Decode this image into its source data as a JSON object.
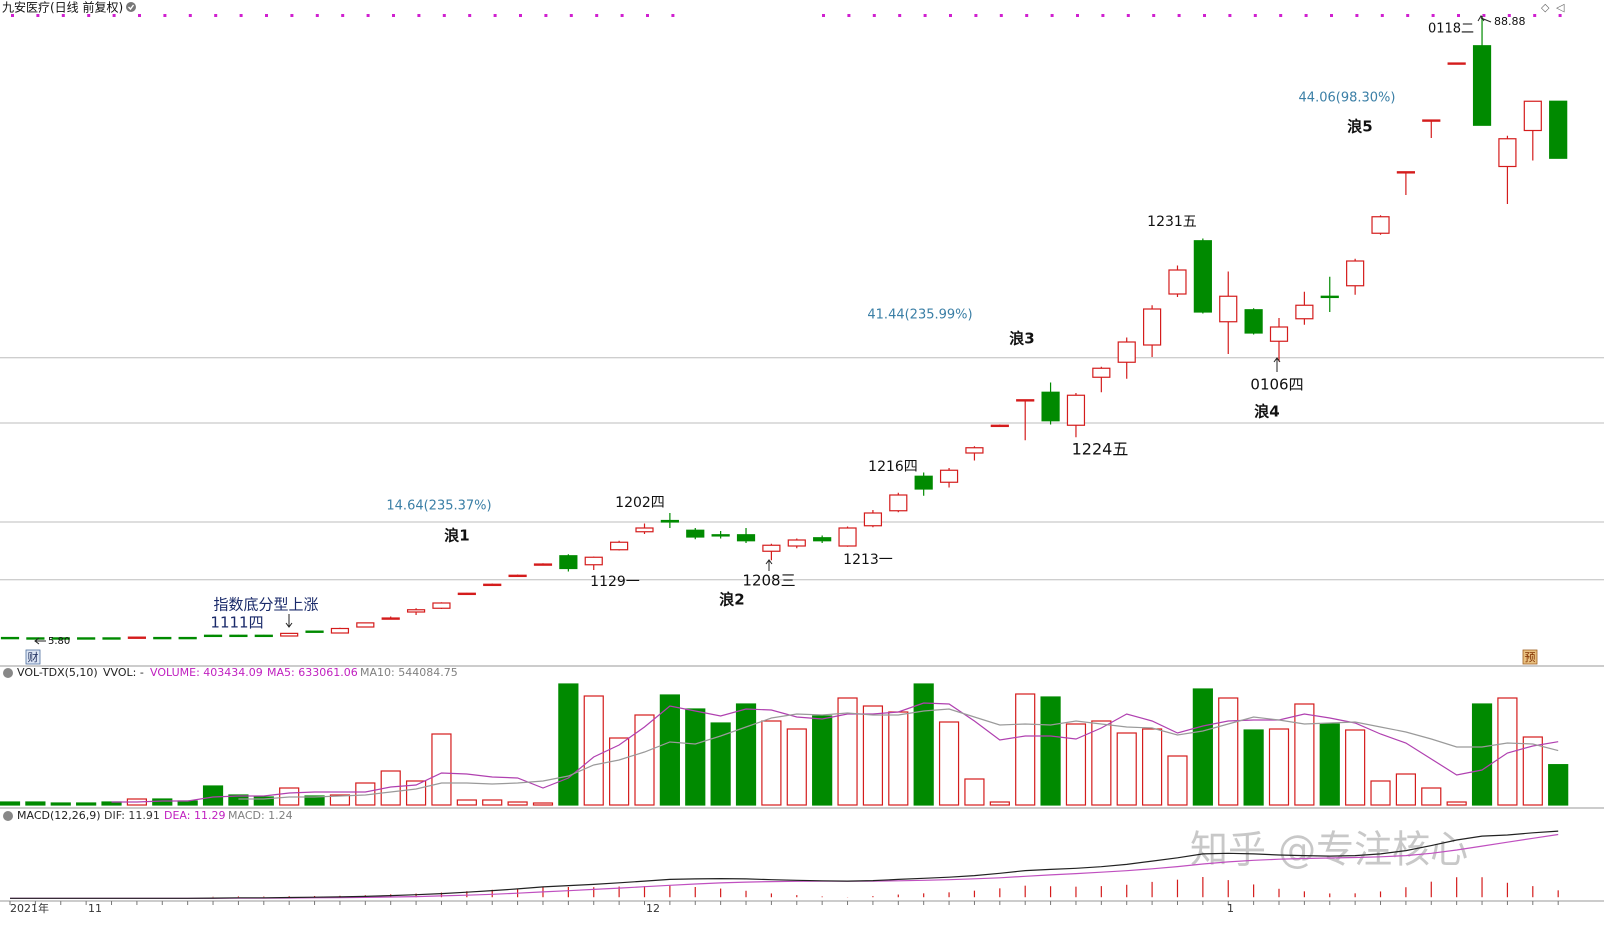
{
  "chart_data": [
    {
      "type": "candlestick",
      "title": "九安医疗(日线 前复权)",
      "up_color": "#d41c1c",
      "down_color": "#008a00",
      "ylim": [
        3,
        91
      ],
      "open": [
        6.0,
        5.95,
        5.95,
        5.95,
        5.95,
        5.95,
        6.0,
        6.0,
        6.3,
        6.3,
        6.3,
        6.2,
        6.85,
        6.6,
        7.4,
        8.6,
        9.4,
        9.9,
        11.9,
        13.1,
        14.3,
        15.8,
        16.9,
        15.7,
        17.7,
        20.1,
        21.6,
        20.3,
        19.7,
        19.7,
        17.5,
        18.2,
        19.3,
        18.2,
        20.9,
        22.9,
        27.5,
        26.7,
        30.6,
        34.3,
        37.7,
        38.7,
        34.3,
        40.7,
        42.7,
        45.0,
        51.8,
        58.9,
        48.1,
        49.7,
        45.5,
        48.5,
        51.5,
        52.9,
        59.9,
        68.1,
        75.0,
        82.6,
        84.9,
        68.8,
        73.6,
        77.5
      ],
      "high": [
        6.0,
        6.0,
        6.0,
        6.0,
        6.0,
        6.1,
        6.05,
        6.05,
        6.35,
        6.35,
        6.35,
        6.6,
        6.9,
        7.3,
        8.0,
        8.8,
        9.9,
        10.7,
        11.95,
        13.2,
        14.4,
        15.9,
        17.1,
        16.8,
        18.9,
        21.2,
        22.6,
        20.6,
        20.2,
        20.6,
        18.5,
        19.2,
        19.6,
        20.8,
        23.0,
        25.3,
        28.0,
        28.6,
        31.5,
        34.4,
        37.7,
        40.0,
        38.6,
        42.1,
        46.0,
        50.3,
        55.6,
        59.2,
        54.8,
        49.9,
        48.6,
        52.1,
        54.1,
        56.5,
        62.3,
        68.1,
        75.0,
        82.6,
        88.88,
        72.9,
        77.5,
        77.5
      ],
      "low": [
        5.9,
        5.8,
        5.9,
        5.9,
        5.9,
        5.9,
        5.95,
        5.95,
        6.2,
        6.25,
        6.25,
        6.15,
        6.75,
        6.55,
        7.35,
        8.4,
        9.0,
        9.8,
        11.85,
        13.0,
        14.2,
        15.7,
        14.8,
        15.0,
        17.6,
        19.8,
        20.6,
        19.1,
        19.2,
        18.6,
        16.3,
        17.9,
        18.6,
        18.1,
        20.7,
        22.7,
        24.9,
        26.0,
        29.6,
        34.2,
        32.3,
        34.4,
        32.7,
        38.7,
        40.5,
        43.4,
        51.4,
        49.2,
        43.8,
        46.4,
        42.8,
        47.7,
        49.4,
        51.7,
        59.7,
        65.0,
        72.6,
        82.4,
        74.3,
        63.8,
        69.6,
        69.9
      ],
      "close": [
        5.98,
        5.93,
        5.93,
        5.93,
        5.93,
        6.05,
        5.98,
        5.98,
        6.25,
        6.28,
        6.28,
        6.55,
        6.8,
        7.2,
        7.95,
        8.6,
        9.7,
        10.6,
        11.9,
        13.1,
        14.3,
        15.8,
        15.2,
        16.7,
        18.7,
        20.6,
        21.4,
        19.4,
        19.6,
        18.9,
        18.3,
        19.0,
        18.9,
        20.6,
        22.6,
        25.0,
        25.8,
        28.3,
        31.3,
        34.3,
        37.7,
        34.9,
        38.3,
        41.9,
        45.4,
        49.8,
        55.0,
        49.4,
        51.5,
        46.6,
        47.4,
        50.3,
        51.4,
        56.2,
        62.1,
        68.1,
        75.0,
        82.6,
        74.3,
        72.5,
        77.5,
        69.9
      ],
      "levels": [
        43.3,
        34.6,
        21.4,
        13.7
      ],
      "level_color": "#bdbdbd",
      "annotations": [
        {
          "text": "14.64(235.37%)",
          "color": "#3b7fa6"
        },
        {
          "text": "41.44(235.99%)",
          "color": "#3b7fa6"
        },
        {
          "text": "44.06(98.30%)",
          "color": "#3b7fa6"
        },
        {
          "text": "浪1",
          "color": "#111111"
        },
        {
          "text": "浪2",
          "color": "#111111"
        },
        {
          "text": "浪3",
          "color": "#111111"
        },
        {
          "text": "浪4",
          "color": "#111111"
        },
        {
          "text": "浪5",
          "color": "#111111"
        },
        {
          "text": "1202四",
          "color": "#111111"
        },
        {
          "text": "1129一",
          "color": "#111111"
        },
        {
          "text": "1208三",
          "color": "#111111"
        },
        {
          "text": "1213一",
          "color": "#111111"
        },
        {
          "text": "1216四",
          "color": "#111111"
        },
        {
          "text": "1224五",
          "color": "#111111"
        },
        {
          "text": "1231五",
          "color": "#111111"
        },
        {
          "text": "0106四",
          "color": "#111111"
        },
        {
          "text": "0118二",
          "color": "#111111"
        },
        {
          "text": "88.88",
          "color": "#111111"
        },
        {
          "text": "5.80",
          "color": "#111111"
        },
        {
          "text": "指数底分型上涨",
          "color": "#1a2a6a"
        },
        {
          "text": "1111四",
          "color": "#1a2a6a"
        }
      ],
      "badges": [
        "财",
        "预"
      ]
    },
    {
      "type": "volume",
      "header": [
        {
          "text": "VOL-TDX(5,10)",
          "color": "#222222"
        },
        {
          "text": "VVOL: -",
          "color": "#222222"
        },
        {
          "text": "VOLUME: 403434.09",
          "color": "#c020c0"
        },
        {
          "text": "MA5: 633061.06",
          "color": "#c020c0"
        },
        {
          "text": "MA10: 544084.75",
          "color": "#808080"
        }
      ],
      "ylim": [
        0,
        1230000
      ],
      "values": [
        30000,
        30000,
        20000,
        20000,
        30000,
        60000,
        60000,
        40000,
        190000,
        100000,
        80000,
        170000,
        90000,
        100000,
        220000,
        340000,
        240000,
        710000,
        50000,
        50000,
        30000,
        20000,
        1210000,
        1090000,
        670000,
        900000,
        1100000,
        960000,
        820000,
        1010000,
        840000,
        760000,
        890000,
        1070000,
        990000,
        930000,
        1210000,
        830000,
        260000,
        30000,
        1110000,
        1080000,
        810000,
        840000,
        720000,
        760000,
        490000,
        1160000,
        1070000,
        750000,
        760000,
        1010000,
        810000,
        750000,
        240000,
        310000,
        170000,
        30000,
        1010000,
        1070000,
        680000,
        403434.09
      ],
      "lines": [
        {
          "color": "#b040b0",
          "values": [
            null,
            null,
            null,
            null,
            30000,
            30000,
            40000,
            40000,
            80000,
            90000,
            90000,
            120000,
            130000,
            130000,
            130000,
            180000,
            200000,
            320000,
            310000,
            280000,
            270000,
            170000,
            270000,
            480000,
            600000,
            780000,
            990000,
            940000,
            890000,
            960000,
            950000,
            880000,
            860000,
            910000,
            910000,
            930000,
            1020000,
            1010000,
            840000,
            650000,
            690000,
            690000,
            660000,
            770000,
            910000,
            840000,
            720000,
            790000,
            840000,
            850000,
            850000,
            910000,
            870000,
            820000,
            710000,
            620000,
            460000,
            300000,
            350000,
            520000,
            590000,
            633061.06
          ]
        },
        {
          "color": "#9a9a9a",
          "values": [
            null,
            null,
            null,
            null,
            null,
            null,
            null,
            null,
            null,
            60000,
            60000,
            80000,
            80000,
            90000,
            100000,
            130000,
            160000,
            220000,
            220000,
            210000,
            220000,
            240000,
            290000,
            400000,
            450000,
            530000,
            630000,
            610000,
            690000,
            780000,
            870000,
            910000,
            900000,
            920000,
            900000,
            900000,
            940000,
            960000,
            880000,
            800000,
            810000,
            800000,
            840000,
            810000,
            780000,
            770000,
            700000,
            740000,
            810000,
            880000,
            850000,
            810000,
            820000,
            830000,
            780000,
            730000,
            660000,
            580000,
            580000,
            620000,
            610000,
            544084.75
          ]
        }
      ]
    },
    {
      "type": "macd",
      "header": [
        {
          "text": "MACD(12,26,9)",
          "color": "#222222"
        },
        {
          "text": "DIF: 11.91",
          "color": "#333333"
        },
        {
          "text": "DEA: 11.29",
          "color": "#c020c0"
        },
        {
          "text": "MACD: 1.24",
          "color": "#808080"
        }
      ],
      "ylim": [
        -0.5,
        13
      ],
      "dif": {
        "color": "#222222",
        "values": [
          -0.2,
          -0.2,
          -0.2,
          -0.2,
          -0.2,
          -0.2,
          -0.2,
          -0.2,
          -0.15,
          -0.1,
          -0.1,
          -0.05,
          0,
          0.05,
          0.15,
          0.3,
          0.45,
          0.65,
          0.9,
          1.2,
          1.5,
          1.85,
          2.1,
          2.3,
          2.6,
          2.9,
          3.2,
          3.3,
          3.35,
          3.3,
          3.15,
          3.05,
          2.95,
          2.9,
          3.0,
          3.2,
          3.4,
          3.6,
          3.9,
          4.3,
          4.8,
          5.0,
          5.2,
          5.5,
          5.9,
          6.5,
          7.1,
          7.8,
          7.9,
          7.8,
          7.6,
          7.5,
          7.4,
          7.5,
          7.8,
          8.4,
          9.3,
          10.3,
          11.0,
          11.2,
          11.6,
          11.91
        ]
      },
      "dea": {
        "color": "#c050c0",
        "values": [
          -0.2,
          -0.2,
          -0.2,
          -0.2,
          -0.2,
          -0.2,
          -0.2,
          -0.2,
          -0.19,
          -0.17,
          -0.16,
          -0.14,
          -0.11,
          -0.08,
          -0.03,
          0.04,
          0.12,
          0.23,
          0.36,
          0.53,
          0.72,
          0.95,
          1.18,
          1.4,
          1.64,
          1.89,
          2.15,
          2.38,
          2.57,
          2.72,
          2.81,
          2.86,
          2.88,
          2.88,
          2.9,
          2.96,
          3.05,
          3.16,
          3.31,
          3.5,
          3.76,
          4.01,
          4.25,
          4.5,
          4.78,
          5.12,
          5.52,
          5.98,
          6.36,
          6.65,
          6.84,
          6.97,
          7.06,
          7.15,
          7.28,
          7.5,
          7.9,
          8.5,
          9.2,
          9.9,
          10.6,
          11.29
        ]
      },
      "hist_color": "#d41c1c",
      "hist": [
        0,
        0,
        0,
        0,
        0,
        0,
        0,
        0,
        0.08,
        0.14,
        0.12,
        0.18,
        0.22,
        0.26,
        0.36,
        0.52,
        0.66,
        0.84,
        1.08,
        1.34,
        1.56,
        1.8,
        1.84,
        1.8,
        1.92,
        2.02,
        2.1,
        1.84,
        1.56,
        1.16,
        0.68,
        0.38,
        0.14,
        0.04,
        0.2,
        0.48,
        0.7,
        0.88,
        1.18,
        1.6,
        2.08,
        1.98,
        1.9,
        2.0,
        2.24,
        2.76,
        3.16,
        3.64,
        3.08,
        2.3,
        1.52,
        1.06,
        0.68,
        0.7,
        1.04,
        1.8,
        2.8,
        3.6,
        3.6,
        2.6,
        2.0,
        1.24
      ],
      "x_labels": [
        "2021年",
        "11",
        "12",
        "1"
      ],
      "watermark": "知乎 @专注核心"
    }
  ]
}
